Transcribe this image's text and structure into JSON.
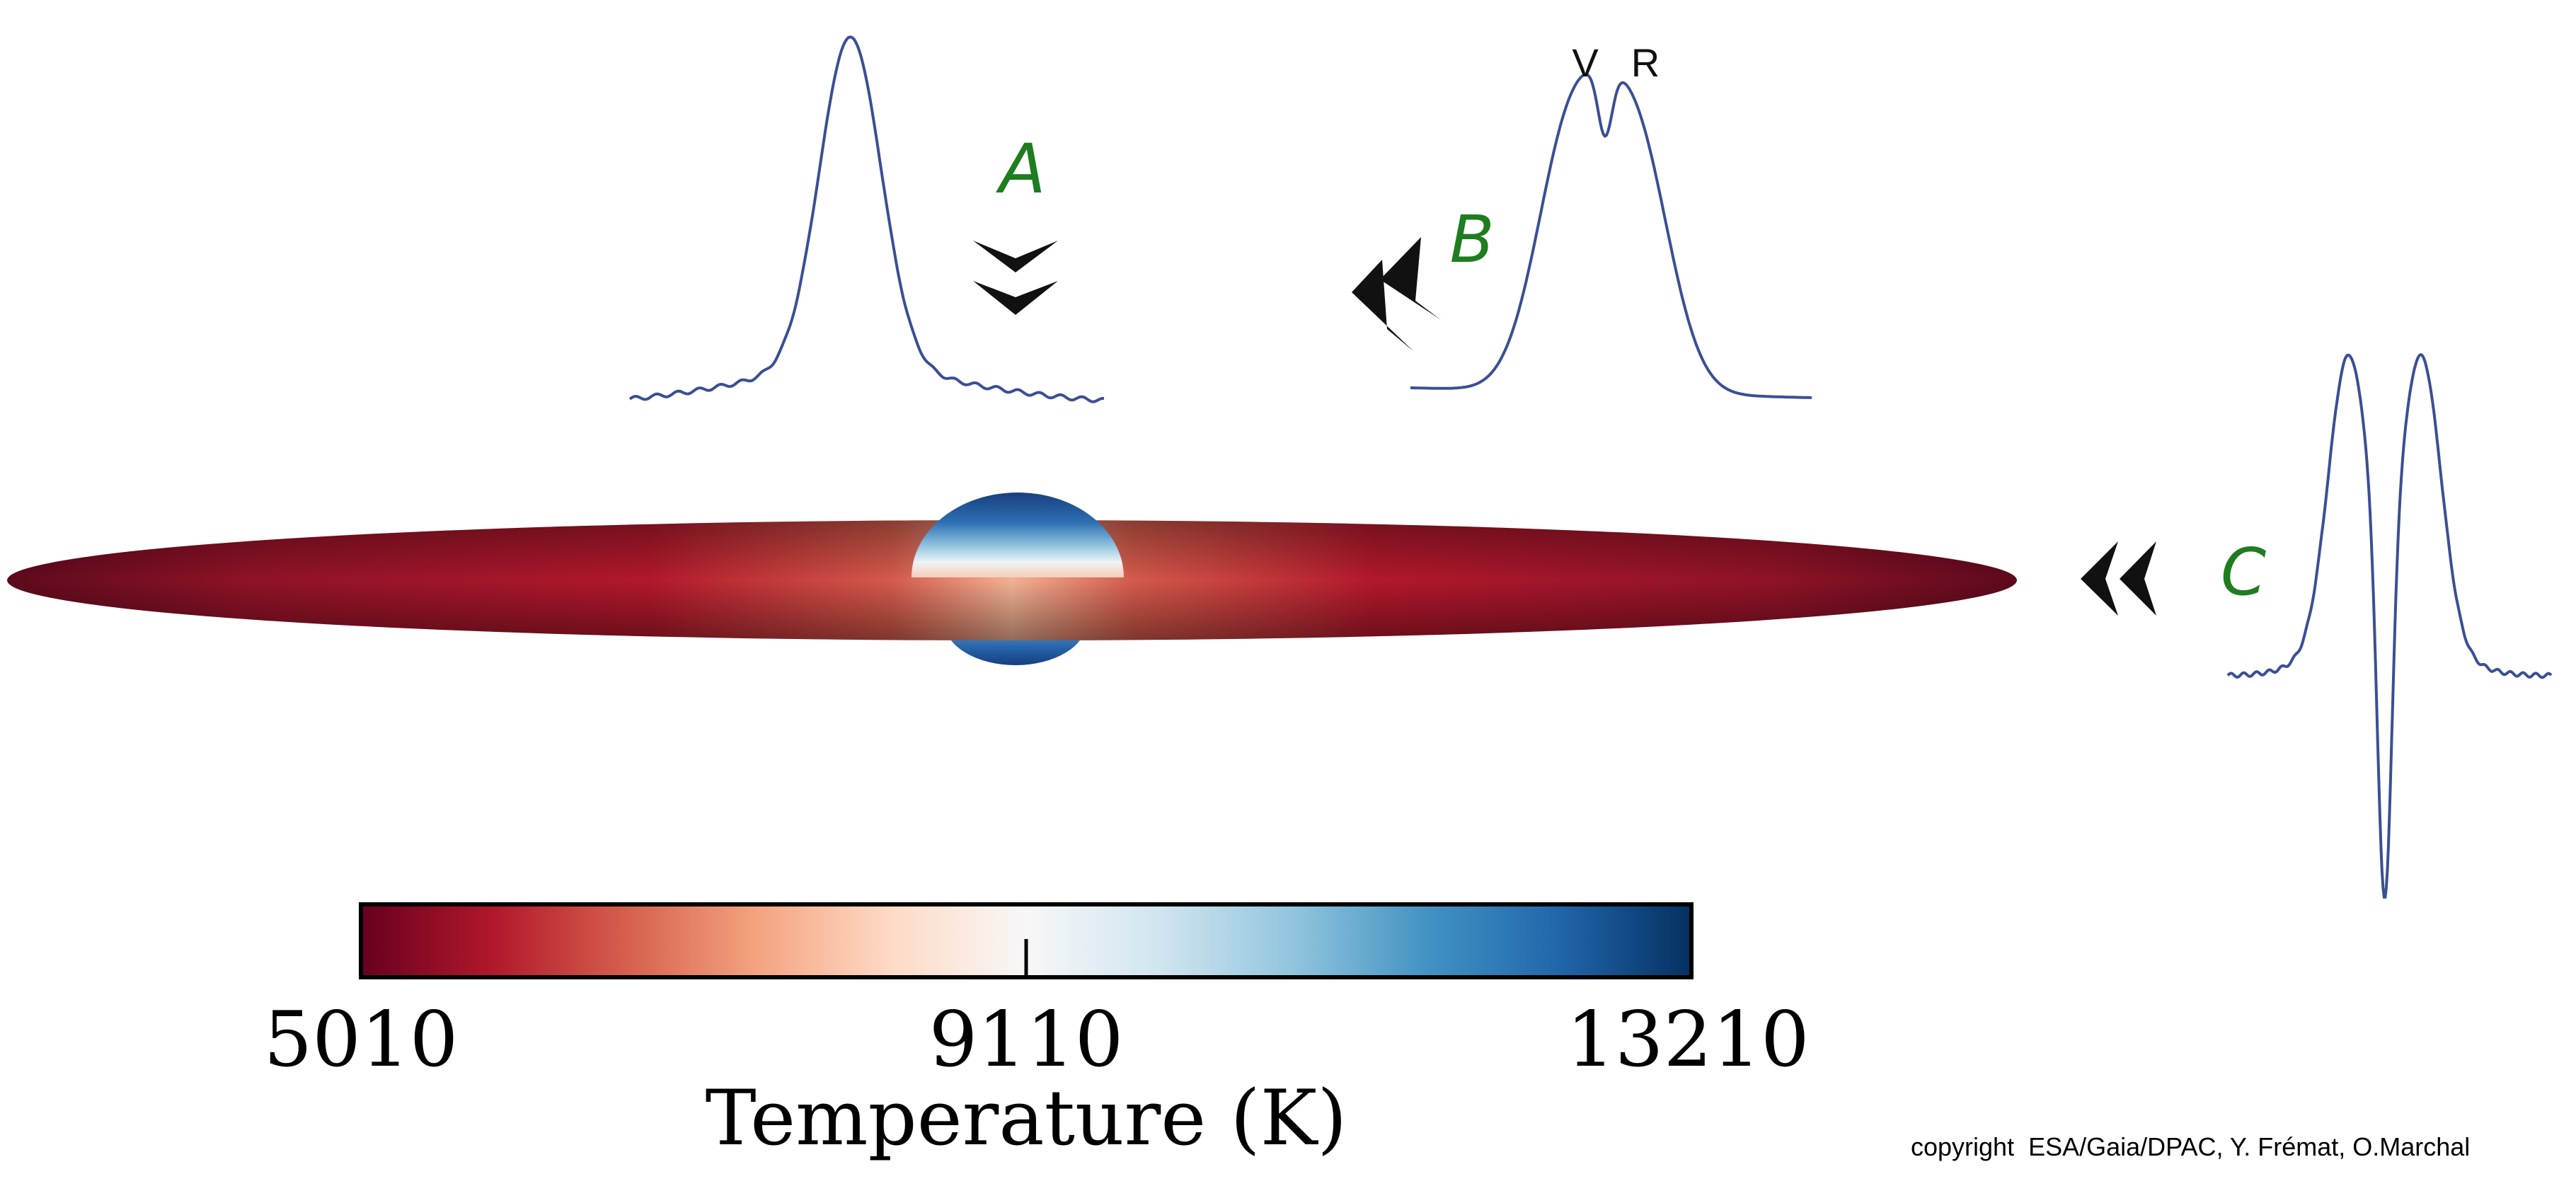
{
  "views": {
    "a": {
      "label": "A"
    },
    "b": {
      "label": "B"
    },
    "c": {
      "label": "C"
    }
  },
  "profile_b": {
    "v_label": "V",
    "r_label": "R"
  },
  "colorbar": {
    "min_label": "5010",
    "mid_label": "9110",
    "max_label": "13210",
    "title": "Temperature (K)",
    "gradient": [
      "#67001f",
      "#b2182b",
      "#d6604d",
      "#f4a582",
      "#fddbc7",
      "#f7f7f7",
      "#d1e5f0",
      "#92c5de",
      "#4393c3",
      "#2166ac",
      "#053061"
    ]
  },
  "copyright": "copyright  ESA/Gaia/DPAC, Y. Frémat, O.Marchal",
  "colors": {
    "profile_line": "#3a4f94",
    "view_label": "#1e7d1e",
    "arrow": "#111111",
    "disk_outer": "#7a0c22",
    "disk_mid": "#b2182b",
    "disk_inner": "#f4b79a",
    "star_top": "#1f4f95",
    "star_bottom": "#f4d8c8"
  }
}
